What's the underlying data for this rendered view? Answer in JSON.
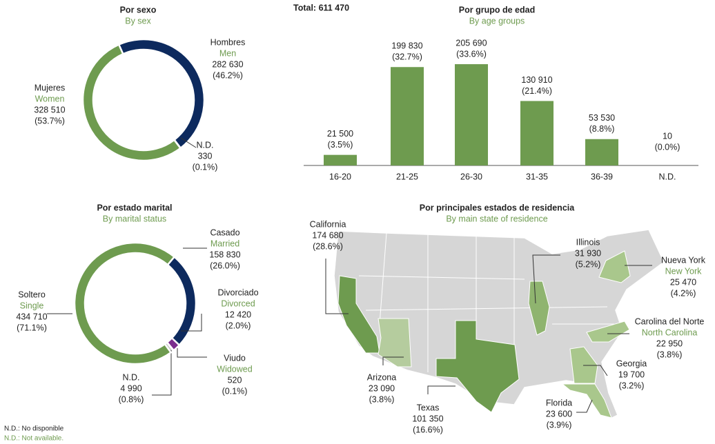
{
  "chart_data": [
    {
      "type": "pie",
      "title": "Por sexo",
      "subtitle": "By sex",
      "categories": [
        "Hombres",
        "N.D.",
        "Mujeres"
      ],
      "categories_en": [
        "Men",
        null,
        "Women"
      ],
      "values": [
        282630,
        330,
        328510
      ],
      "value_labels": [
        "282 630",
        "330",
        "328 510"
      ],
      "percent_labels": [
        "(46.2%)",
        "(0.1%)",
        "(53.7%)"
      ],
      "colors": [
        "#0d2a5e",
        "#c8c8c8",
        "#6e9b4f"
      ]
    },
    {
      "type": "bar",
      "title": "Por grupo de edad",
      "subtitle": "By age groups",
      "annotation": "Total: 611 470",
      "categories": [
        "16-20",
        "21-25",
        "26-30",
        "31-35",
        "36-39",
        "N.D."
      ],
      "values": [
        21500,
        199830,
        205690,
        130910,
        53530,
        10
      ],
      "value_labels": [
        "21 500",
        "199 830",
        "205 690",
        "130 910",
        "53 530",
        "10"
      ],
      "percent_labels": [
        "(3.5%)",
        "(32.7%)",
        "(33.6%)",
        "(21.4%)",
        "(8.8%)",
        "(0.0%)"
      ],
      "color": "#6e9b4f",
      "ylim": [
        0,
        210000
      ]
    },
    {
      "type": "pie",
      "title": "Por estado marital",
      "subtitle": "By marital status",
      "categories": [
        "Casado",
        "Divorciado",
        "Viudo",
        "N.D.",
        "Soltero"
      ],
      "categories_en": [
        "Married",
        "Divorced",
        "Widowed",
        null,
        "Single"
      ],
      "values": [
        158830,
        12420,
        520,
        4990,
        434710
      ],
      "value_labels": [
        "158 830",
        "12 420",
        "520",
        "4 990",
        "434 710"
      ],
      "percent_labels": [
        "(26.0%)",
        "(2.0%)",
        "(0.1%)",
        "(0.8%)",
        "(71.1%)"
      ],
      "colors": [
        "#0d2a5e",
        "#7b2d8e",
        "#e0529c",
        "#c8c8c8",
        "#6e9b4f"
      ]
    },
    {
      "type": "map",
      "title": "Por principales estados de residencia",
      "subtitle": "By main state of residence",
      "categories": [
        "California",
        "Illinois",
        "Nueva York",
        "Carolina del Norte",
        "Georgia",
        "Florida",
        "Texas",
        "Arizona"
      ],
      "categories_en": [
        null,
        null,
        "New York",
        "North Carolina",
        null,
        null,
        null,
        null
      ],
      "values": [
        174680,
        31930,
        25470,
        22950,
        19700,
        23600,
        101350,
        23090
      ],
      "value_labels": [
        "174 680",
        "31 930",
        "25 470",
        "22 950",
        "19 700",
        "23 600",
        "101 350",
        "23 090"
      ],
      "percent_labels": [
        "(28.6%)",
        "(5.2%)",
        "(4.2%)",
        "(3.8%)",
        "(3.2%)",
        "(3.9%)",
        "(16.6%)",
        "(3.8%)"
      ],
      "colors": [
        "#6e9b4f",
        "#8fb46f",
        "#a9c78c",
        "#a9c78c",
        "#a9c78c",
        "#a9c78c",
        "#6e9b4f",
        "#b5cc9e"
      ]
    }
  ],
  "notes": [
    "N.D.: No disponible",
    "N.D.: Not available."
  ]
}
